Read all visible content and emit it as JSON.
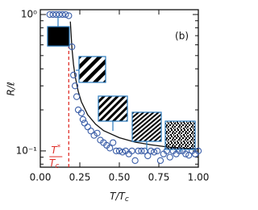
{
  "chart_data": {
    "type": "scatter",
    "panel_label": "(b)",
    "y_label": "R/ℓ",
    "x_label": [
      "T/T",
      "c"
    ],
    "xlim": [
      0,
      1
    ],
    "xticks": [
      {
        "value": 0,
        "label": "0.00"
      },
      0.25,
      {
        "value": 0.5,
        "label": "0.50"
      },
      0.75,
      {
        "value": 1,
        "label": "1.00"
      }
    ],
    "ylim": [
      0.076,
      1.085
    ],
    "log_y": true,
    "yticks": [
      {
        "value": 0.1,
        "label": "10⁻¹"
      },
      {
        "value": 1,
        "label": "10⁰"
      }
    ],
    "yminor": [
      0.08,
      0.09,
      0.2,
      0.3,
      0.4,
      0.5,
      0.6,
      0.7,
      0.8,
      0.9
    ],
    "points": {
      "color": "#3b5ea8",
      "x": [
        0.06,
        0.08,
        0.1,
        0.12,
        0.14,
        0.16,
        0.18,
        0.2,
        0.21,
        0.22,
        0.23,
        0.24,
        0.26,
        0.27,
        0.28,
        0.3,
        0.32,
        0.34,
        0.36,
        0.38,
        0.4,
        0.42,
        0.44,
        0.46,
        0.48,
        0.5,
        0.52,
        0.54,
        0.56,
        0.58,
        0.6,
        0.62,
        0.64,
        0.66,
        0.68,
        0.7,
        0.72,
        0.74,
        0.76,
        0.78,
        0.8,
        0.82,
        0.84,
        0.86,
        0.88,
        0.9,
        0.92,
        0.94,
        0.96,
        0.98,
        1.0
      ],
      "values": [
        1.0,
        1.0,
        1.0,
        1.0,
        1.0,
        1.0,
        0.98,
        0.58,
        0.36,
        0.3,
        0.25,
        0.2,
        0.19,
        0.17,
        0.16,
        0.15,
        0.14,
        0.13,
        0.135,
        0.12,
        0.115,
        0.11,
        0.105,
        0.115,
        0.1,
        0.1,
        0.098,
        0.1,
        0.095,
        0.1,
        0.085,
        0.1,
        0.1,
        0.1,
        0.092,
        0.1,
        0.098,
        0.1,
        0.085,
        0.095,
        0.1,
        0.09,
        0.1,
        0.095,
        0.1,
        0.1,
        0.095,
        0.093,
        0.1,
        0.095,
        0.1
      ]
    },
    "fit": {
      "color": "#111111",
      "x": [
        0.19,
        0.2,
        0.21,
        0.22,
        0.24,
        0.26,
        0.3,
        0.35,
        0.4,
        0.5,
        0.6,
        0.7,
        0.8,
        0.9,
        1.0
      ],
      "values": [
        0.888,
        0.568,
        0.431,
        0.355,
        0.273,
        0.229,
        0.184,
        0.157,
        0.141,
        0.125,
        0.116,
        0.111,
        0.107,
        0.105,
        0.103
      ]
    },
    "threshold": {
      "x": 0.18,
      "color": "#e0302a",
      "numerator": [
        "T",
        "*"
      ],
      "denominator": [
        "T",
        "c"
      ]
    }
  }
}
